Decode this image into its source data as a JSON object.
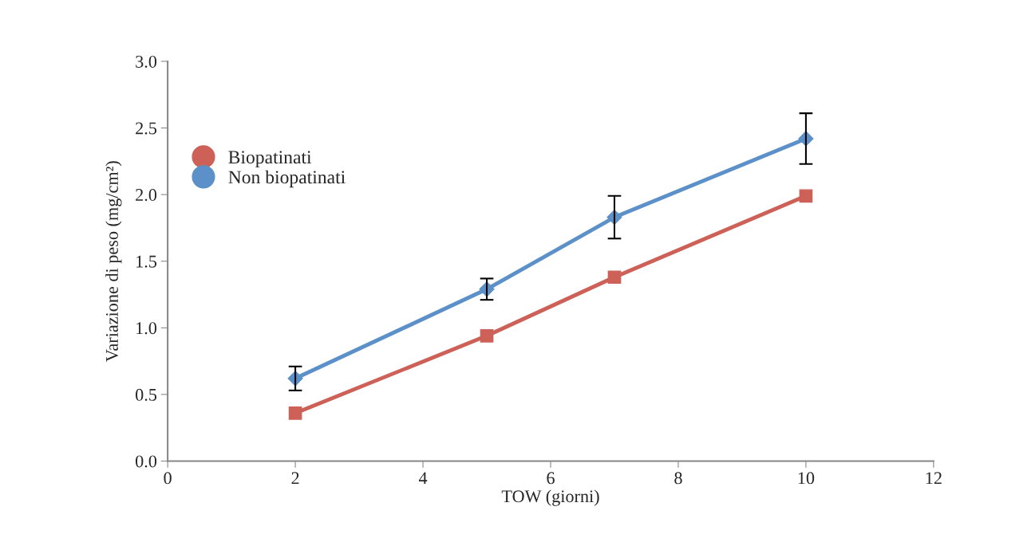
{
  "chart_data": {
    "type": "line",
    "xlabel": "TOW (giorni)",
    "ylabel": "Variazione di peso (mg/cm²)",
    "x": [
      2,
      5,
      7,
      10
    ],
    "series": [
      {
        "name": "Biopatinati",
        "color": "#cd6158",
        "marker": "square",
        "values": [
          0.36,
          0.94,
          1.38,
          1.99
        ]
      },
      {
        "name": "Non biopatinati",
        "color": "#5b91c8",
        "marker": "diamond",
        "values": [
          0.62,
          1.29,
          1.83,
          2.42
        ],
        "errors": [
          0.09,
          0.08,
          0.16,
          0.19
        ]
      }
    ],
    "xlim": [
      0,
      12
    ],
    "xticks": [
      0,
      2,
      4,
      6,
      8,
      10,
      12
    ],
    "ylim": [
      0,
      3
    ],
    "yticks": [
      {
        "value": 0,
        "label": "0.0"
      },
      {
        "value": 0.5,
        "label": "0.5"
      },
      {
        "value": 1,
        "label": "1.0"
      },
      {
        "value": 1.5,
        "label": "1.5"
      },
      {
        "value": 2,
        "label": "2.0"
      },
      {
        "value": 2.5,
        "label": "2.5"
      },
      {
        "value": 3,
        "label": "3.0"
      }
    ],
    "grid": false,
    "legend": "top left",
    "line_style": "solid"
  }
}
